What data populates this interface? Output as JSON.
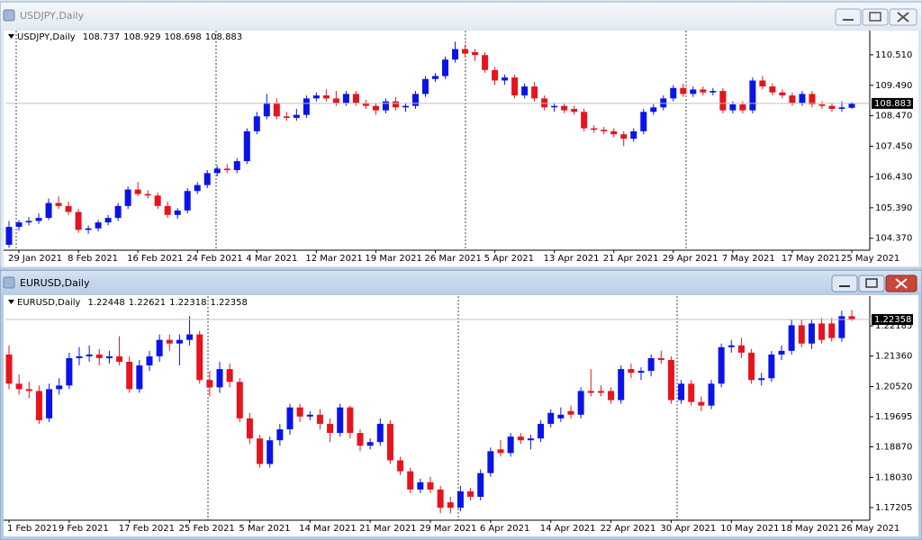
{
  "chart_data": [
    {
      "type": "candlestick",
      "title": "USDJPY,Daily",
      "up_color": "#0a14e6",
      "down_color": "#e6141e",
      "categories": [
        null,
        "29 Jan 2021",
        null,
        null,
        null,
        null,
        null,
        "8 Feb 2021",
        null,
        null,
        null,
        null,
        null,
        "16 Feb 2021",
        null,
        null,
        null,
        null,
        null,
        "24 Feb 2021",
        null,
        null,
        null,
        null,
        null,
        "4 Mar 2021",
        null,
        null,
        null,
        null,
        null,
        "12 Mar 2021",
        null,
        null,
        null,
        null,
        null,
        "19 Mar 2021",
        null,
        null,
        null,
        null,
        null,
        "26 Mar 2021",
        null,
        null,
        null,
        null,
        null,
        "5 Apr 2021",
        null,
        null,
        null,
        null,
        null,
        "13 Apr 2021",
        null,
        null,
        null,
        null,
        null,
        "21 Apr 2021",
        null,
        null,
        null,
        null,
        null,
        "29 Apr 2021",
        null,
        null,
        null,
        null,
        null,
        "7 May 2021",
        null,
        null,
        null,
        null,
        null,
        "17 May 2021",
        null,
        null,
        null,
        null,
        null,
        "25 May 2021"
      ],
      "candles": [
        [
          104.15,
          104.95,
          104.05,
          104.75
        ],
        [
          104.75,
          104.98,
          104.62,
          104.9
        ],
        [
          104.9,
          105.08,
          104.8,
          104.95
        ],
        [
          104.95,
          105.2,
          104.85,
          105.05
        ],
        [
          105.05,
          105.7,
          104.98,
          105.55
        ],
        [
          105.55,
          105.77,
          105.35,
          105.45
        ],
        [
          105.45,
          105.6,
          105.15,
          105.25
        ],
        [
          105.25,
          105.35,
          104.55,
          104.65
        ],
        [
          104.65,
          104.8,
          104.52,
          104.7
        ],
        [
          104.7,
          104.98,
          104.6,
          104.9
        ],
        [
          104.9,
          105.15,
          104.8,
          105.05
        ],
        [
          105.05,
          105.55,
          104.95,
          105.45
        ],
        [
          105.45,
          106.1,
          105.35,
          106.0
        ],
        [
          106.0,
          106.25,
          105.78,
          105.85
        ],
        [
          105.85,
          105.98,
          105.7,
          105.8
        ],
        [
          105.8,
          105.9,
          105.35,
          105.45
        ],
        [
          105.45,
          105.6,
          105.05,
          105.15
        ],
        [
          105.15,
          105.38,
          105.02,
          105.3
        ],
        [
          105.3,
          106.05,
          105.2,
          105.95
        ],
        [
          105.95,
          106.25,
          105.85,
          106.15
        ],
        [
          106.15,
          106.65,
          106.05,
          106.55
        ],
        [
          106.55,
          106.8,
          106.45,
          106.7
        ],
        [
          106.7,
          106.85,
          106.55,
          106.65
        ],
        [
          106.65,
          107.05,
          106.55,
          106.95
        ],
        [
          106.95,
          108.05,
          106.85,
          107.95
        ],
        [
          107.95,
          108.6,
          107.85,
          108.45
        ],
        [
          108.45,
          109.2,
          108.35,
          108.9
        ],
        [
          108.9,
          109.05,
          108.35,
          108.45
        ],
        [
          108.45,
          108.6,
          108.3,
          108.4
        ],
        [
          108.4,
          108.7,
          108.3,
          108.5
        ],
        [
          108.5,
          109.15,
          108.4,
          109.05
        ],
        [
          109.05,
          109.25,
          108.95,
          109.15
        ],
        [
          109.15,
          109.35,
          108.95,
          109.05
        ],
        [
          109.05,
          109.3,
          108.8,
          108.9
        ],
        [
          108.9,
          109.3,
          108.8,
          109.2
        ],
        [
          109.2,
          109.3,
          108.8,
          108.9
        ],
        [
          108.9,
          109.0,
          108.7,
          108.8
        ],
        [
          108.8,
          108.9,
          108.5,
          108.65
        ],
        [
          108.65,
          109.05,
          108.55,
          108.95
        ],
        [
          108.95,
          109.1,
          108.65,
          108.75
        ],
        [
          108.75,
          108.9,
          108.6,
          108.8
        ],
        [
          108.8,
          109.3,
          108.7,
          109.2
        ],
        [
          109.2,
          109.8,
          109.1,
          109.7
        ],
        [
          109.7,
          109.9,
          109.6,
          109.8
        ],
        [
          109.8,
          110.45,
          109.7,
          110.35
        ],
        [
          110.35,
          110.95,
          110.25,
          110.7
        ],
        [
          110.7,
          110.85,
          110.45,
          110.55
        ],
        [
          110.6,
          110.7,
          110.3,
          110.5
        ],
        [
          110.5,
          110.6,
          109.9,
          110.0
        ],
        [
          110.0,
          110.1,
          109.5,
          109.65
        ],
        [
          109.65,
          109.85,
          109.5,
          109.75
        ],
        [
          109.75,
          109.85,
          109.05,
          109.15
        ],
        [
          109.15,
          109.55,
          109.05,
          109.45
        ],
        [
          109.45,
          109.6,
          108.95,
          109.05
        ],
        [
          109.05,
          109.15,
          108.65,
          108.75
        ],
        [
          108.75,
          108.9,
          108.6,
          108.8
        ],
        [
          108.8,
          108.9,
          108.55,
          108.65
        ],
        [
          108.7,
          108.8,
          108.5,
          108.6
        ],
        [
          108.6,
          108.7,
          107.95,
          108.05
        ],
        [
          108.05,
          108.15,
          107.9,
          108.0
        ],
        [
          108.0,
          108.1,
          107.85,
          107.95
        ],
        [
          107.95,
          108.05,
          107.75,
          107.85
        ],
        [
          107.85,
          107.95,
          107.45,
          107.7
        ],
        [
          107.7,
          108.05,
          107.6,
          107.95
        ],
        [
          107.95,
          108.7,
          107.85,
          108.6
        ],
        [
          108.6,
          108.85,
          108.5,
          108.75
        ],
        [
          108.75,
          109.15,
          108.65,
          109.05
        ],
        [
          109.05,
          109.5,
          108.95,
          109.4
        ],
        [
          109.4,
          109.55,
          109.1,
          109.2
        ],
        [
          109.2,
          109.45,
          109.1,
          109.35
        ],
        [
          109.35,
          109.45,
          109.15,
          109.25
        ],
        [
          109.25,
          109.4,
          109.15,
          109.3
        ],
        [
          109.3,
          109.4,
          108.55,
          108.65
        ],
        [
          108.65,
          108.95,
          108.55,
          108.85
        ],
        [
          108.85,
          108.95,
          108.55,
          108.65
        ],
        [
          108.65,
          109.75,
          108.55,
          109.65
        ],
        [
          109.65,
          109.8,
          109.35,
          109.45
        ],
        [
          109.45,
          109.55,
          109.15,
          109.25
        ],
        [
          109.25,
          109.35,
          109.05,
          109.15
        ],
        [
          109.15,
          109.25,
          108.8,
          108.9
        ],
        [
          108.9,
          109.3,
          108.8,
          109.2
        ],
        [
          109.2,
          109.3,
          108.75,
          108.85
        ],
        [
          108.85,
          108.95,
          108.7,
          108.8
        ],
        [
          108.8,
          108.9,
          108.6,
          108.7
        ],
        [
          108.7,
          108.95,
          108.6,
          108.75
        ],
        [
          108.737,
          108.929,
          108.698,
          108.883
        ]
      ],
      "ylim": [
        103.97,
        111.32
      ],
      "yticks": [
        {
          "value": 110.51,
          "label": "110.510"
        },
        {
          "value": 109.49,
          "label": "109.490"
        },
        {
          "value": 108.47,
          "label": "108.470"
        },
        {
          "value": 107.45,
          "label": "107.450"
        },
        {
          "value": 106.43,
          "label": "106.430"
        },
        {
          "value": 105.39,
          "label": "105.390"
        },
        {
          "value": 104.37,
          "label": "104.370"
        }
      ],
      "active": false
    },
    {
      "type": "candlestick",
      "title": "EURUSD,Daily",
      "up_color": "#0a14e6",
      "down_color": "#e6141e",
      "categories": [
        "1 Feb 2021",
        null,
        null,
        null,
        null,
        null,
        "9 Feb 2021",
        null,
        null,
        null,
        null,
        null,
        "17 Feb 2021",
        null,
        null,
        null,
        null,
        null,
        "25 Feb 2021",
        null,
        null,
        null,
        null,
        null,
        "5 Mar 2021",
        null,
        null,
        null,
        null,
        null,
        "14 Mar 2021",
        null,
        null,
        null,
        null,
        null,
        "21 Mar 2021",
        null,
        null,
        null,
        null,
        null,
        "29 Mar 2021",
        null,
        null,
        null,
        null,
        null,
        "6 Apr 2021",
        null,
        null,
        null,
        null,
        null,
        "14 Apr 2021",
        null,
        null,
        null,
        null,
        null,
        "22 Apr 2021",
        null,
        null,
        null,
        null,
        null,
        "30 Apr 2021",
        null,
        null,
        null,
        null,
        null,
        "10 May 2021",
        null,
        null,
        null,
        null,
        null,
        "18 May 2021",
        null,
        null,
        null,
        null,
        null,
        "26 May 2021"
      ],
      "candles": [
        [
          1.214,
          1.2165,
          1.2045,
          1.206
        ],
        [
          1.206,
          1.2085,
          1.203,
          1.2045
        ],
        [
          1.2045,
          1.2065,
          1.202,
          1.204
        ],
        [
          1.204,
          1.2055,
          1.195,
          1.196
        ],
        [
          1.1965,
          1.206,
          1.1955,
          1.2045
        ],
        [
          1.2045,
          1.2075,
          1.203,
          1.2055
        ],
        [
          1.2055,
          1.2145,
          1.2045,
          1.213
        ],
        [
          1.213,
          1.216,
          1.211,
          1.2135
        ],
        [
          1.2135,
          1.2165,
          1.212,
          1.214
        ],
        [
          1.214,
          1.2155,
          1.211,
          1.213
        ],
        [
          1.213,
          1.215,
          1.2115,
          1.2135
        ],
        [
          1.2135,
          1.219,
          1.211,
          1.212
        ],
        [
          1.212,
          1.2135,
          1.2035,
          1.2045
        ],
        [
          1.2045,
          1.2125,
          1.2035,
          1.211
        ],
        [
          1.211,
          1.215,
          1.2095,
          1.2135
        ],
        [
          1.2135,
          1.2195,
          1.212,
          1.218
        ],
        [
          1.218,
          1.2195,
          1.215,
          1.217
        ],
        [
          1.217,
          1.2195,
          1.211,
          1.218
        ],
        [
          1.218,
          1.2245,
          1.2165,
          1.2195
        ],
        [
          1.2195,
          1.2205,
          1.206,
          1.207
        ],
        [
          1.207,
          1.2095,
          1.2025,
          1.205
        ],
        [
          1.205,
          1.212,
          1.2035,
          1.21
        ],
        [
          1.21,
          1.2115,
          1.205,
          1.2065
        ],
        [
          1.2065,
          1.2075,
          1.1955,
          1.1965
        ],
        [
          1.1965,
          1.198,
          1.1895,
          1.191
        ],
        [
          1.191,
          1.192,
          1.183,
          1.184
        ],
        [
          1.184,
          1.1915,
          1.183,
          1.1905
        ],
        [
          1.1905,
          1.195,
          1.189,
          1.1935
        ],
        [
          1.1935,
          1.2005,
          1.192,
          1.1995
        ],
        [
          1.1995,
          1.2005,
          1.1955,
          1.197
        ],
        [
          1.197,
          1.1985,
          1.196,
          1.1975
        ],
        [
          1.1975,
          1.199,
          1.1935,
          1.195
        ],
        [
          1.195,
          1.1965,
          1.19,
          1.1925
        ],
        [
          1.1925,
          1.2005,
          1.1915,
          1.1995
        ],
        [
          1.1995,
          1.2,
          1.191,
          1.1925
        ],
        [
          1.1925,
          1.1935,
          1.1875,
          1.189
        ],
        [
          1.189,
          1.191,
          1.188,
          1.19
        ],
        [
          1.19,
          1.1965,
          1.189,
          1.195
        ],
        [
          1.195,
          1.196,
          1.184,
          1.185
        ],
        [
          1.185,
          1.186,
          1.181,
          1.182
        ],
        [
          1.182,
          1.183,
          1.176,
          1.177
        ],
        [
          1.177,
          1.18,
          1.176,
          1.179
        ],
        [
          1.179,
          1.1805,
          1.176,
          1.177
        ],
        [
          1.177,
          1.178,
          1.1705,
          1.172
        ],
        [
          1.1735,
          1.175,
          1.1705,
          1.172
        ],
        [
          1.172,
          1.178,
          1.171,
          1.1765
        ],
        [
          1.1765,
          1.1775,
          1.174,
          1.175
        ],
        [
          1.175,
          1.1825,
          1.174,
          1.1815
        ],
        [
          1.1815,
          1.1885,
          1.1805,
          1.1875
        ],
        [
          1.188,
          1.1905,
          1.186,
          1.187
        ],
        [
          1.187,
          1.1925,
          1.186,
          1.1915
        ],
        [
          1.1915,
          1.1925,
          1.1895,
          1.1905
        ],
        [
          1.1905,
          1.192,
          1.188,
          1.191
        ],
        [
          1.191,
          1.196,
          1.19,
          1.195
        ],
        [
          1.195,
          1.199,
          1.194,
          1.198
        ],
        [
          1.1965,
          1.1995,
          1.1955,
          1.1975
        ],
        [
          1.1985,
          1.2,
          1.1965,
          1.1975
        ],
        [
          1.1975,
          1.205,
          1.1965,
          1.204
        ],
        [
          1.204,
          1.21,
          1.2025,
          1.2035
        ],
        [
          1.204,
          1.2055,
          1.2025,
          1.2035
        ],
        [
          1.204,
          1.205,
          1.2005,
          1.2015
        ],
        [
          1.2015,
          1.211,
          1.2005,
          1.21
        ],
        [
          1.21,
          1.2115,
          1.2075,
          1.209
        ],
        [
          1.209,
          1.2105,
          1.207,
          1.2095
        ],
        [
          1.2095,
          1.214,
          1.208,
          1.213
        ],
        [
          1.213,
          1.215,
          1.2115,
          1.2125
        ],
        [
          1.2125,
          1.2135,
          1.2005,
          1.2015
        ],
        [
          1.2015,
          1.207,
          1.2005,
          1.206
        ],
        [
          1.206,
          1.207,
          1.2,
          1.201
        ],
        [
          1.201,
          1.2025,
          1.1985,
          1.2
        ],
        [
          1.2,
          1.207,
          1.199,
          1.206
        ],
        [
          1.206,
          1.217,
          1.205,
          1.216
        ],
        [
          1.216,
          1.218,
          1.2145,
          1.2165
        ],
        [
          1.2165,
          1.2185,
          1.213,
          1.2145
        ],
        [
          1.2145,
          1.2155,
          1.206,
          1.207
        ],
        [
          1.207,
          1.209,
          1.2055,
          1.2075
        ],
        [
          1.2075,
          1.215,
          1.2065,
          1.214
        ],
        [
          1.214,
          1.2165,
          1.2125,
          1.215
        ],
        [
          1.215,
          1.2235,
          1.214,
          1.222
        ],
        [
          1.222,
          1.2235,
          1.216,
          1.217
        ],
        [
          1.217,
          1.2235,
          1.2155,
          1.2225
        ],
        [
          1.2225,
          1.224,
          1.217,
          1.218
        ],
        [
          1.2225,
          1.224,
          1.2175,
          1.2185
        ],
        [
          1.2185,
          1.226,
          1.2175,
          1.2245
        ],
        [
          1.22448,
          1.22621,
          1.22318,
          1.22358
        ]
      ],
      "ylim": [
        1.1686,
        1.23
      ],
      "yticks": [
        1.22185,
        {
          "value": 1.2136,
          "label": "1.21360"
        },
        {
          "value": 1.2052,
          "label": "1.20520"
        },
        1.19695,
        {
          "value": 1.1887,
          "label": "1.18870"
        },
        {
          "value": 1.1803,
          "label": "1.18030"
        },
        1.17205
      ],
      "active": true
    }
  ]
}
